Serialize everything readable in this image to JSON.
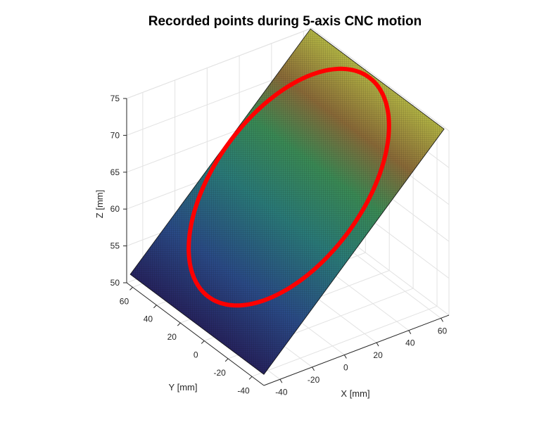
{
  "chart_data": {
    "type": "surface3d",
    "title": "Recorded points during 5-axis CNC motion",
    "xlabel": "X [mm]",
    "ylabel": "Y [mm]",
    "zlabel": "Z [mm]",
    "xlim": [
      -50,
      65
    ],
    "ylim": [
      -50,
      65
    ],
    "zlim": [
      50,
      75
    ],
    "xticks": [
      "-40",
      "-20",
      "0",
      "20",
      "40",
      "60"
    ],
    "yticks": [
      "-40",
      "-20",
      "0",
      "20",
      "40",
      "60"
    ],
    "zticks": [
      "50",
      "55",
      "60",
      "65",
      "70",
      "75"
    ],
    "grid": true,
    "colormap": "parula",
    "series": [
      {
        "kind": "surface",
        "x_range": [
          -50,
          62
        ],
        "y_range": [
          -50,
          62
        ],
        "z_at_x_min": 51.5,
        "z_at_x_max": 75.5
      },
      {
        "kind": "circle",
        "color": "#ff0000",
        "center_xy": [
          10,
          10
        ],
        "radius": 50
      }
    ]
  }
}
